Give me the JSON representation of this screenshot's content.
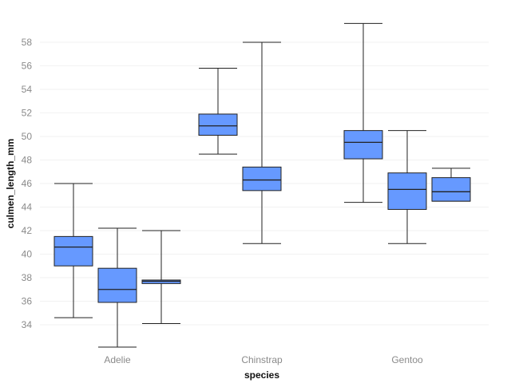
{
  "chart_data": {
    "type": "boxplot",
    "xlabel": "species",
    "ylabel": "culmen_length_mm",
    "ylim": [
      32,
      60
    ],
    "yticks": [
      34,
      36,
      38,
      40,
      42,
      44,
      46,
      48,
      50,
      52,
      54,
      56,
      58
    ],
    "grid": true,
    "box_color": "#6699ff",
    "categories": [
      "Adelie",
      "Chinstrap",
      "Gentoo"
    ],
    "groups": [
      {
        "category": "Adelie",
        "boxes": [
          {
            "min": 34.6,
            "q1": 39.0,
            "median": 40.6,
            "q3": 41.5,
            "max": 46.0
          },
          {
            "min": 32.1,
            "q1": 35.9,
            "median": 37.0,
            "q3": 38.8,
            "max": 42.2
          },
          {
            "min": 34.1,
            "q1": 37.5,
            "median": 37.7,
            "q3": 37.8,
            "max": 42.0
          }
        ]
      },
      {
        "category": "Chinstrap",
        "boxes": [
          {
            "min": 48.5,
            "q1": 50.1,
            "median": 50.9,
            "q3": 51.9,
            "max": 55.8
          },
          {
            "min": 40.9,
            "q1": 45.4,
            "median": 46.3,
            "q3": 47.4,
            "max": 58.0
          }
        ]
      },
      {
        "category": "Gentoo",
        "boxes": [
          {
            "min": 44.4,
            "q1": 48.1,
            "median": 49.5,
            "q3": 50.5,
            "max": 59.6
          },
          {
            "min": 40.9,
            "q1": 43.8,
            "median": 45.5,
            "q3": 46.9,
            "max": 50.5
          },
          {
            "min": 44.5,
            "q1": 44.5,
            "median": 45.3,
            "q3": 46.5,
            "max": 47.3
          }
        ]
      }
    ]
  }
}
